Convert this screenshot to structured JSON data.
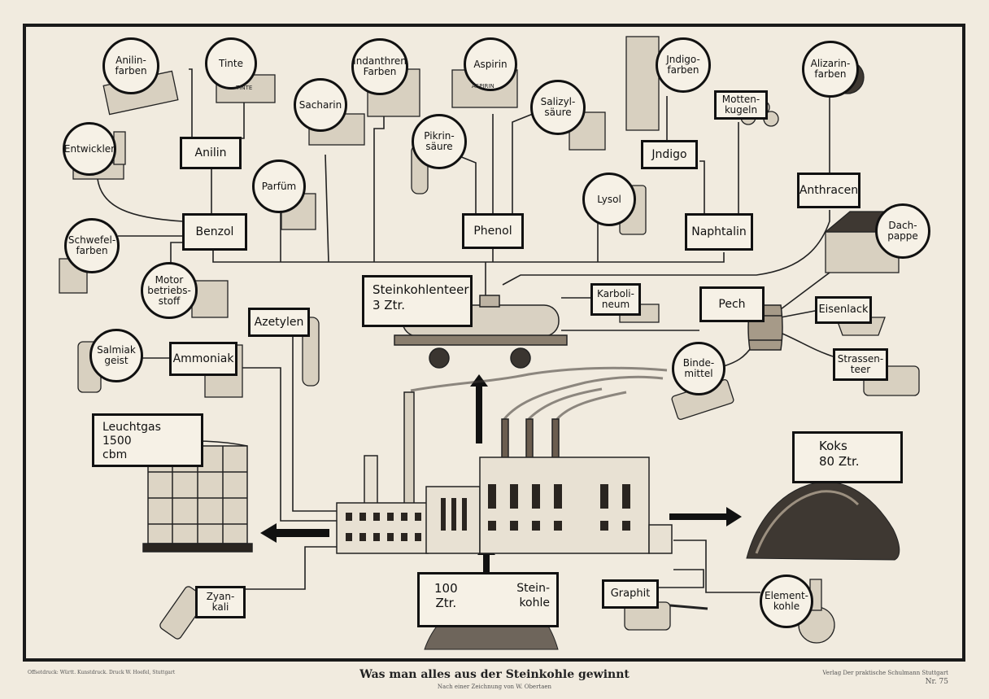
{
  "poster": {
    "title": "Was man alles aus der Steinkohle gewinnt",
    "subtitle": "Nach einer Zeichnung von W. Obertaen",
    "printer": "Offsetdruck: Württ. Kunstdruck. Druck W. Hoefel, Stuttgart",
    "publisher": "Verlag Der praktische Schulmann Stuttgart",
    "number": "Nr. 75"
  },
  "boxes": {
    "anilin": "Anilin",
    "benzol": "Benzol",
    "phenol": "Phenol",
    "indigo": "Jndigo",
    "naphtalin": "Naphtalin",
    "mottenkugeln": "Motten-\nkugeln",
    "anthracen": "Anthracen",
    "steinkohlenteer": "Steinkohlenteer\n3 Ztr.",
    "karbolineum": "Karboli-\nneum",
    "pech": "Pech",
    "eisenlack": "Eisenlack",
    "strassenteer": "Strassen-\nteer",
    "azetylen": "Azetylen",
    "ammoniak": "Ammoniak",
    "leuchtgas": "Leuchtgas\n1500\ncbm",
    "koks": "Koks\n80 Ztr.",
    "steinkohle_amount": "100\nZtr.",
    "steinkohle_label": "Stein-\nkohle",
    "graphit": "Graphit",
    "zyankali": "Zyan-\nkali"
  },
  "circles": {
    "anilinfarben": "Anilin-\nfarben",
    "tinte": "Tinte",
    "entwickler": "Entwickler",
    "sacharin": "Sacharin",
    "indanthren": "Indanthren\nFarben",
    "aspirin": "Aspirin",
    "pikrinsaeure": "Pikrin-\nsäure",
    "salizylsaeure": "Salizyl-\nsäure",
    "indigofarben": "Jndigo-\nfarben",
    "alizarinfarben": "Alizarin-\nfarben",
    "parfuem": "Parfüm",
    "lysol": "Lysol",
    "schwefelfarben": "Schwefel-\nfarben",
    "motorbetriebsstoff": "Motor\nbetriebs-\nstoff",
    "dachpappe": "Dach-\npappe",
    "salmiakgeist": "Salmiak\ngeist",
    "bindemittel": "Binde-\nmittel",
    "elementkohle": "Element-\nkohle"
  },
  "labels_product": {
    "tinte_bottle": "TINTE",
    "aspirin_box": "ASPIRIN"
  },
  "colors": {
    "ink": "#111111",
    "paper": "#f1ebdf",
    "sepia": "#6b5d4f"
  }
}
